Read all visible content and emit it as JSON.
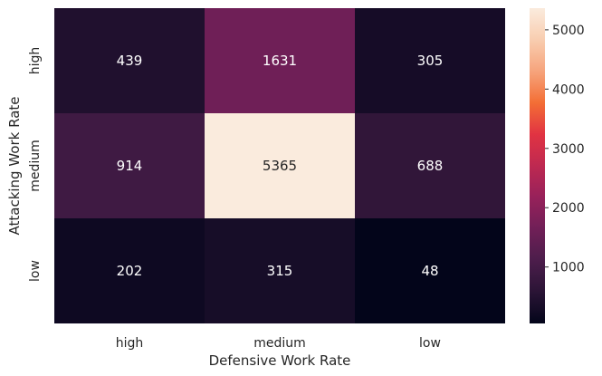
{
  "chart_data": {
    "type": "heatmap",
    "x_categories": [
      "high",
      "medium",
      "low"
    ],
    "y_categories": [
      "high",
      "medium",
      "low"
    ],
    "values": [
      [
        439,
        1631,
        305
      ],
      [
        914,
        5365,
        688
      ],
      [
        202,
        315,
        48
      ]
    ],
    "xlabel": "Defensive Work Rate",
    "ylabel": "Attacking Work Rate",
    "colorbar": {
      "ticks": [
        1000,
        2000,
        3000,
        4000,
        5000
      ],
      "min": 48,
      "max": 5365
    },
    "colormap": "rocket",
    "colormap_stops": [
      "#03051a",
      "#2a1435",
      "#4c1d4b",
      "#701f57",
      "#97215a",
      "#be2951",
      "#e13342",
      "#f36e35",
      "#f6a47c",
      "#f8cdb0",
      "#faebdd"
    ]
  }
}
